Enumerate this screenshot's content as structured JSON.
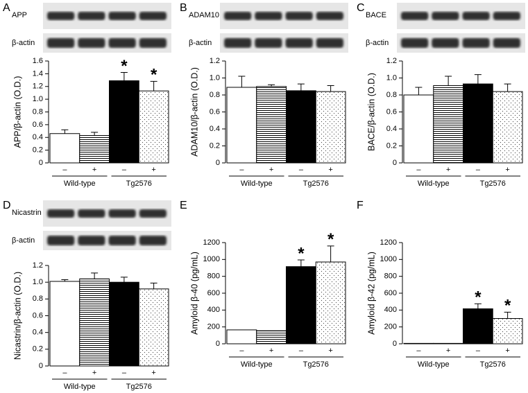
{
  "chart_data": [
    {
      "type": "bar",
      "panel": "A",
      "blot_labels": [
        "APP",
        "β-actin"
      ],
      "y_label": "APP/β-actin (O.D.)",
      "categories": [
        "–",
        "+",
        "–",
        "+"
      ],
      "groups": [
        "Wild-type",
        "Tg2576"
      ],
      "values": [
        0.46,
        0.43,
        1.29,
        1.13
      ],
      "errors": [
        0.06,
        0.05,
        0.13,
        0.15
      ],
      "significance": [
        null,
        null,
        "*",
        "*"
      ],
      "ylim": [
        0,
        1.6
      ],
      "yticks": [
        0,
        0.2,
        0.4,
        0.6,
        0.8,
        {
          "value": 1,
          "label": "1.0"
        },
        1.2,
        1.4,
        1.6
      ]
    },
    {
      "type": "bar",
      "panel": "B",
      "blot_labels": [
        "ADAM10",
        "β-actin"
      ],
      "y_label": "ADAM10/β-actin (O.D.)",
      "categories": [
        "–",
        "+",
        "–",
        "+"
      ],
      "groups": [
        "Wild-type",
        "Tg2576"
      ],
      "values": [
        0.89,
        0.9,
        0.85,
        0.84
      ],
      "errors": [
        0.13,
        0.02,
        0.08,
        0.07
      ],
      "significance": [
        null,
        null,
        null,
        null
      ],
      "ylim": [
        0,
        1.2
      ],
      "yticks": [
        0,
        0.2,
        0.4,
        0.6,
        0.8,
        {
          "value": 1,
          "label": "1.0"
        },
        1.2
      ]
    },
    {
      "type": "bar",
      "panel": "C",
      "blot_labels": [
        "BACE",
        "β-actin"
      ],
      "y_label": "BACE/β-actin (O.D.)",
      "categories": [
        "–",
        "+",
        "–",
        "+"
      ],
      "groups": [
        "Wild-type",
        "Tg2576"
      ],
      "values": [
        0.8,
        0.91,
        0.93,
        0.84
      ],
      "errors": [
        0.09,
        0.11,
        0.11,
        0.09
      ],
      "significance": [
        null,
        null,
        null,
        null
      ],
      "ylim": [
        0,
        1.2
      ],
      "yticks": [
        0,
        0.2,
        0.4,
        0.6,
        0.8,
        {
          "value": 1,
          "label": "1.0"
        },
        1.2
      ]
    },
    {
      "type": "bar",
      "panel": "D",
      "blot_labels": [
        "Nicastrin",
        "β-actin"
      ],
      "y_label": "Nicastrin/β-actin (O.D.)",
      "categories": [
        "–",
        "+",
        "–",
        "+"
      ],
      "groups": [
        "Wild-type",
        "Tg2576"
      ],
      "values": [
        1.01,
        1.04,
        1.0,
        0.92
      ],
      "errors": [
        0.02,
        0.07,
        0.06,
        0.07
      ],
      "significance": [
        null,
        null,
        null,
        null
      ],
      "ylim": [
        0,
        1.2
      ],
      "yticks": [
        0,
        0.2,
        0.4,
        0.6,
        0.8,
        {
          "value": 1,
          "label": "1.0"
        },
        1.2
      ]
    },
    {
      "type": "bar",
      "panel": "E",
      "y_label": "Amyloid β-40 (pg/mL)",
      "categories": [
        "–",
        "+",
        "–",
        "+"
      ],
      "groups": [
        "Wild-type",
        "Tg2576"
      ],
      "values": [
        165,
        155,
        915,
        970
      ],
      "errors": [
        0,
        0,
        80,
        190
      ],
      "significance": [
        null,
        null,
        "*",
        "*"
      ],
      "ylim": [
        0,
        1200
      ],
      "yticks": [
        0,
        200,
        400,
        600,
        800,
        1000,
        1200
      ]
    },
    {
      "type": "bar",
      "panel": "F",
      "y_label": "Amyloid β-42 (pg/mL)",
      "categories": [
        "–",
        "+",
        "–",
        "+"
      ],
      "groups": [
        "Wild-type",
        "Tg2576"
      ],
      "values": [
        5,
        5,
        415,
        300
      ],
      "errors": [
        0,
        0,
        60,
        75
      ],
      "significance": [
        null,
        null,
        "*",
        "*"
      ],
      "ylim": [
        0,
        1200
      ],
      "yticks": [
        0,
        200,
        400,
        600,
        800,
        1000,
        1200
      ]
    }
  ]
}
